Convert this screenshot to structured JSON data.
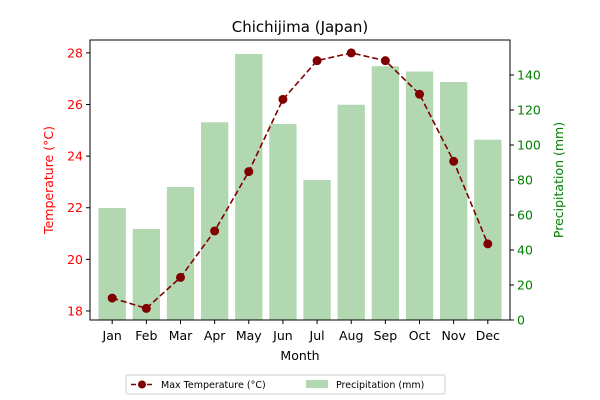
{
  "chart_data": {
    "type": "bar+line",
    "title": "Chichijima (Japan)",
    "xlabel": "Month",
    "categories": [
      "Jan",
      "Feb",
      "Mar",
      "Apr",
      "May",
      "Jun",
      "Jul",
      "Aug",
      "Sep",
      "Oct",
      "Nov",
      "Dec"
    ],
    "series": [
      {
        "name": "Max Temperature (°C)",
        "type": "line",
        "axis": "left",
        "color": "#800000",
        "line_style": "dashed",
        "marker": "circle",
        "values": [
          18.5,
          18.1,
          19.3,
          21.1,
          23.4,
          26.2,
          27.7,
          28.0,
          27.7,
          26.4,
          23.8,
          20.6
        ]
      },
      {
        "name": "Precipitation (mm)",
        "type": "bar",
        "axis": "right",
        "color": "#b2d8b2",
        "values": [
          64,
          52,
          76,
          113,
          152,
          112,
          80,
          123,
          145,
          142,
          136,
          103
        ]
      }
    ],
    "left_axis": {
      "label": "Temperature (°C)",
      "color": "#ff0000",
      "ylim": [
        17.65,
        28.5
      ],
      "ticks": [
        18,
        20,
        22,
        24,
        26,
        28
      ]
    },
    "right_axis": {
      "label": "Precipitation (mm)",
      "color": "#008000",
      "ylim": [
        0,
        160
      ],
      "ticks": [
        0,
        20,
        40,
        60,
        80,
        100,
        120,
        140
      ]
    },
    "grid": false,
    "legend": {
      "placement": "bottom-center",
      "entries": [
        "Max Temperature (°C)",
        "Precipitation (mm)"
      ]
    }
  }
}
